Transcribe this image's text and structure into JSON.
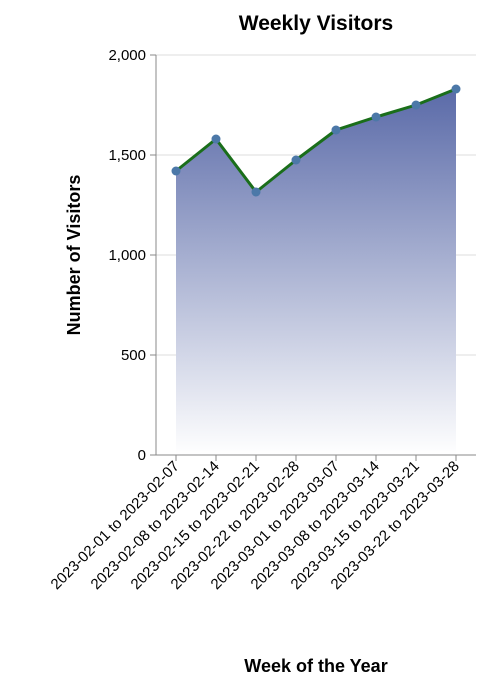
{
  "chart_data": {
    "type": "area",
    "title": "Weekly Visitors",
    "xlabel": "Week of the Year",
    "ylabel": "Number of Visitors",
    "categories": [
      "2023-02-01 to 2023-02-07",
      "2023-02-08 to 2023-02-14",
      "2023-02-15 to 2023-02-21",
      "2023-02-22 to 2023-02-28",
      "2023-03-01 to 2023-03-07",
      "2023-03-08 to 2023-03-14",
      "2023-03-15 to 2023-03-21",
      "2023-03-22 to 2023-03-28"
    ],
    "values": [
      1420,
      1580,
      1315,
      1475,
      1625,
      1690,
      1750,
      1830
    ],
    "ylim": [
      0,
      2000
    ],
    "yticks": [
      "0",
      "500",
      "1,000",
      "1,500",
      "2,000"
    ],
    "ytick_values": [
      0,
      500,
      1000,
      1500,
      2000
    ],
    "grid": "horizontal",
    "line_color": "#1a6e1a",
    "point_color": "#4c78a8",
    "area_gradient_top": "#5a6aa8",
    "area_gradient_bottom": "#ffffff"
  }
}
